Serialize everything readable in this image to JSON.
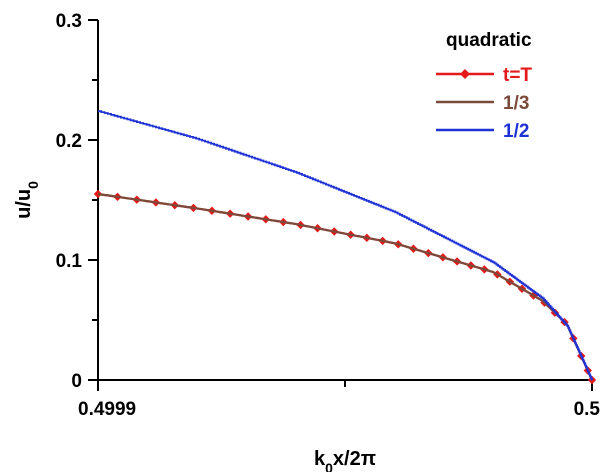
{
  "chart_data": {
    "type": "line",
    "xlabel": "k₀x/2π",
    "ylabel": "u/u₀",
    "xlim": [
      0.4999,
      0.5
    ],
    "ylim": [
      0,
      0.3
    ],
    "x_ticks": [
      0.4999,
      0.5
    ],
    "x_tick_labels": [
      "0.4999",
      "0.5"
    ],
    "y_ticks": [
      0,
      0.1,
      0.2,
      0.3
    ],
    "y_tick_labels": [
      "0",
      "0.1",
      "0.2",
      "0.3"
    ],
    "grid": false,
    "legend": {
      "title": "quadratic",
      "placement": "top-right"
    },
    "series": [
      {
        "name": "t=T",
        "color": "#e41a1a",
        "marker": "diamond",
        "points": [
          [
            0.4999,
            0.155
          ],
          [
            0.49992,
            0.143
          ],
          [
            0.49994,
            0.13
          ],
          [
            0.49996,
            0.114
          ],
          [
            0.49998,
            0.09
          ],
          [
            0.49999,
            0.066
          ],
          [
            0.499995,
            0.046
          ],
          [
            0.5,
            0.0
          ]
        ]
      },
      {
        "name": "1/3",
        "color": "#7a4a3a",
        "points": [
          [
            0.4999,
            0.155
          ],
          [
            0.49992,
            0.143
          ],
          [
            0.49994,
            0.13
          ],
          [
            0.49996,
            0.114
          ],
          [
            0.49998,
            0.09
          ],
          [
            0.49999,
            0.066
          ],
          [
            0.499995,
            0.046
          ],
          [
            0.5,
            0.0
          ]
        ]
      },
      {
        "name": "1/2",
        "color": "#1f32d6",
        "step": true,
        "points": [
          [
            0.4999,
            0.224
          ],
          [
            0.49992,
            0.201
          ],
          [
            0.49994,
            0.173
          ],
          [
            0.49996,
            0.14
          ],
          [
            0.49998,
            0.098
          ],
          [
            0.49999,
            0.068
          ],
          [
            0.499995,
            0.045
          ],
          [
            0.5,
            0.0
          ]
        ]
      }
    ]
  }
}
